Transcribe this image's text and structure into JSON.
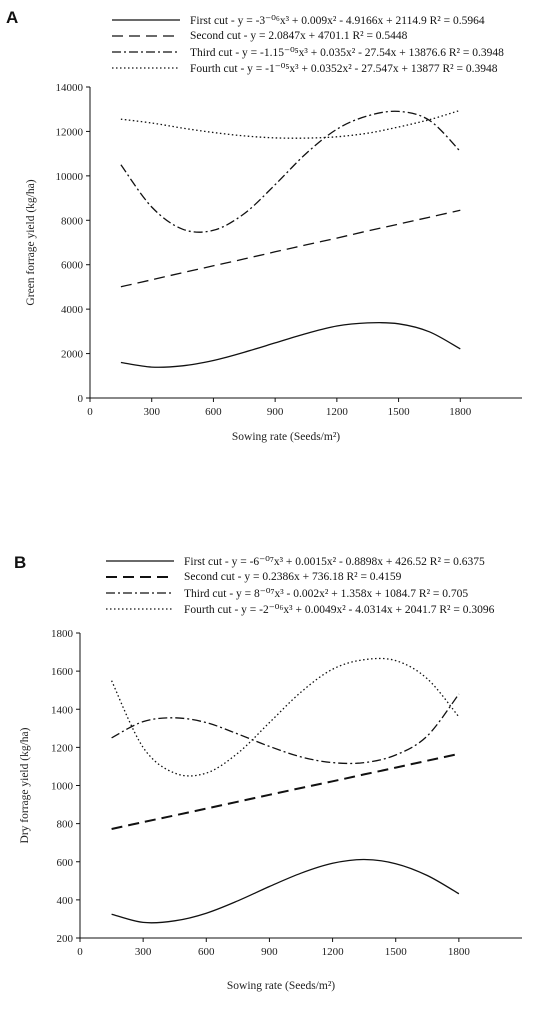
{
  "chart_data": [
    {
      "id": "A",
      "type": "line",
      "panel_label": "A",
      "xlabel": "Sowing rate (Seeds/m²)",
      "ylabel": "Green forrage yield (kg/ha)",
      "xlim": [
        0,
        2100
      ],
      "ylim": [
        0,
        14000
      ],
      "xticks": [
        0,
        300,
        600,
        900,
        1200,
        1500,
        1800
      ],
      "yticks": [
        0,
        2000,
        4000,
        6000,
        8000,
        10000,
        12000,
        14000
      ],
      "grid": false,
      "legend_position": "top",
      "x": [
        150,
        300,
        450,
        600,
        750,
        900,
        1050,
        1200,
        1350,
        1500,
        1650,
        1800
      ],
      "series": [
        {
          "name": "First cut",
          "style": "solid",
          "legend_text": "First cut - y = -3⁻⁰⁶x³ + 0.009x² - 4.9166x + 2114.9  R² = 0.5964",
          "values": [
            1600,
            1390,
            1450,
            1690,
            2060,
            2480,
            2900,
            3240,
            3380,
            3340,
            2980,
            2210
          ]
        },
        {
          "name": "Second cut",
          "style": "dashed",
          "legend_text": "Second cut - y = 2.0847x + 4701.1  R² = 0.5448",
          "values": [
            5010,
            5320,
            5640,
            5950,
            6260,
            6580,
            6890,
            7200,
            7520,
            7830,
            8140,
            8450
          ]
        },
        {
          "name": "Third cut",
          "style": "dashdot",
          "legend_text": "Third cut - y = -1.15⁻⁰⁵x³ + 0.035x² - 27.54x + 13876.6  R² = 0.3948",
          "values": [
            10500,
            8600,
            7600,
            7550,
            8300,
            9600,
            11000,
            12100,
            12700,
            12900,
            12500,
            11100
          ]
        },
        {
          "name": "Fourth cut",
          "style": "dotted",
          "legend_text": "Fourth cut - y = -1⁻⁰⁵x³ + 0.0352x² - 27.547x + 13877  R² = 0.3948",
          "values": [
            12550,
            12380,
            12150,
            11950,
            11800,
            11710,
            11700,
            11760,
            11920,
            12200,
            12530,
            12950
          ]
        }
      ]
    },
    {
      "id": "B",
      "type": "line",
      "panel_label": "B",
      "xlabel": "Sowing rate (Seeds/m²)",
      "ylabel": "Dry forrage yield (kg/ha)",
      "xlim": [
        0,
        2100
      ],
      "ylim": [
        200,
        1800
      ],
      "xticks": [
        0,
        300,
        600,
        900,
        1200,
        1500,
        1800
      ],
      "yticks": [
        200,
        400,
        600,
        800,
        1000,
        1200,
        1400,
        1600,
        1800
      ],
      "grid": false,
      "legend_position": "top",
      "x": [
        150,
        300,
        450,
        600,
        750,
        900,
        1050,
        1200,
        1350,
        1500,
        1650,
        1800
      ],
      "series": [
        {
          "name": "First cut",
          "style": "solid",
          "legend_text": "First cut - y = -6⁻⁰⁷x³ + 0.0015x² - 0.8898x + 426.52  R² = 0.6375",
          "values": [
            325,
            282,
            290,
            330,
            395,
            470,
            540,
            592,
            612,
            590,
            528,
            432
          ]
        },
        {
          "name": "Second cut",
          "style": "dashed",
          "legend_text": "Second cut - y = 0.2386x + 736.18 R² = 0.4159",
          "values": [
            772,
            808,
            843,
            879,
            915,
            951,
            987,
            1022,
            1058,
            1094,
            1130,
            1166
          ]
        },
        {
          "name": "Third cut",
          "style": "dashdot",
          "legend_text": "Third cut - y = 8⁻⁰⁷x³ - 0.002x² + 1.358x + 1084.7  R² = 0.705",
          "values": [
            1250,
            1335,
            1355,
            1330,
            1270,
            1205,
            1150,
            1120,
            1120,
            1160,
            1260,
            1480
          ]
        },
        {
          "name": "Fourth cut",
          "style": "dotted",
          "legend_text": "Fourth cut - y = -2⁻⁰⁶x³ + 0.0049x² - 4.0314x + 2041.7  R² = 0.3096",
          "values": [
            1550,
            1200,
            1065,
            1065,
            1170,
            1330,
            1490,
            1610,
            1660,
            1655,
            1560,
            1360
          ]
        }
      ]
    }
  ]
}
